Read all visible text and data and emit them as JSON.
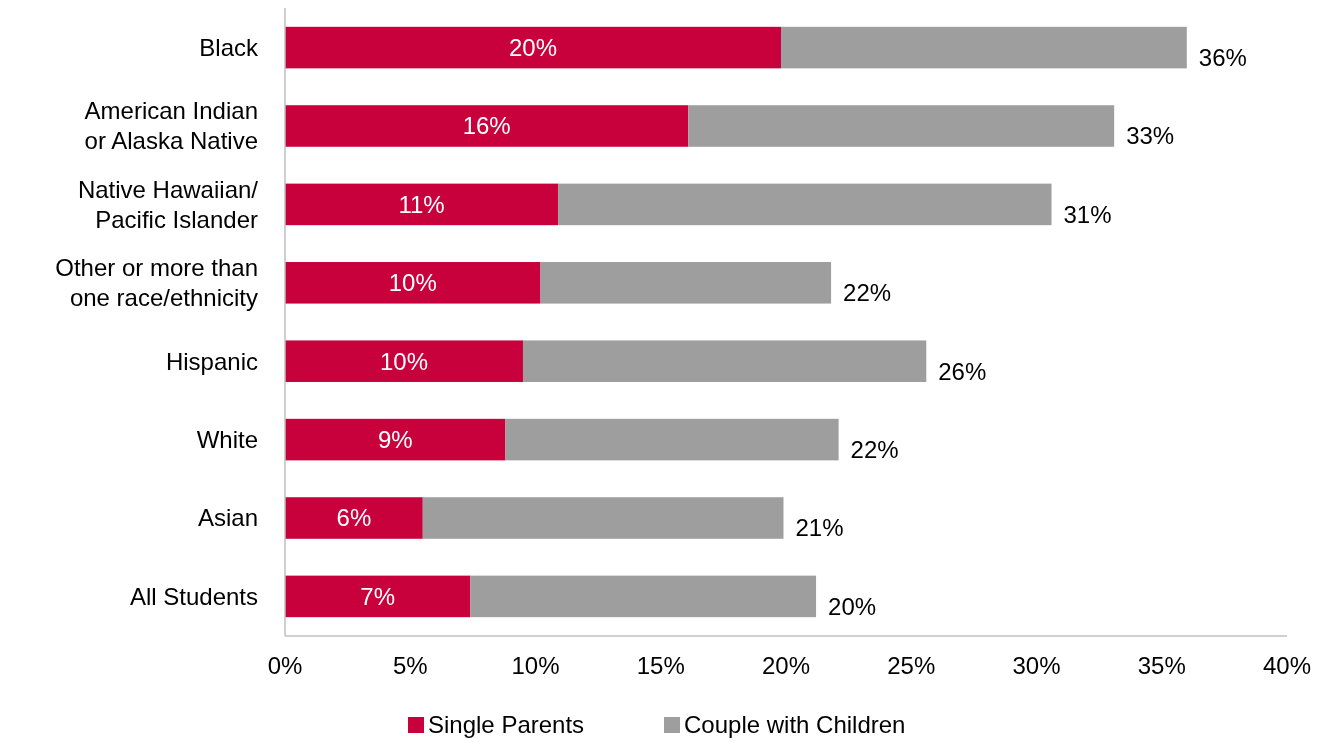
{
  "chart_data": {
    "type": "bar",
    "orientation": "horizontal",
    "stacked": true,
    "categories": [
      "Black",
      "American Indian\nor Alaska Native",
      "Native Hawaiian/\nPacific Islander",
      "Other or more than\none race/ethnicity",
      "Hispanic",
      "White",
      "Asian",
      "All Students"
    ],
    "series": [
      {
        "name": "Single Parents",
        "color": "#c8003c",
        "values": [
          19.8,
          16.1,
          10.9,
          10.2,
          9.5,
          8.8,
          5.5,
          7.4
        ],
        "value_labels": [
          "20%",
          "16%",
          "11%",
          "10%",
          "10%",
          "9%",
          "6%",
          "7%"
        ]
      },
      {
        "name": "Couple with Children",
        "color": "#9e9e9e",
        "values": [
          16.2,
          17.0,
          19.7,
          11.6,
          16.1,
          13.3,
          14.4,
          13.8
        ]
      }
    ],
    "totals": [
      "36%",
      "33%",
      "31%",
      "22%",
      "26%",
      "22%",
      "21%",
      "20%"
    ],
    "xlim": [
      0,
      40
    ],
    "xticks": [
      {
        "value": 0,
        "label": "0%"
      },
      {
        "value": 5,
        "label": "5%"
      },
      {
        "value": 10,
        "label": "10%"
      },
      {
        "value": 15,
        "label": "15%"
      },
      {
        "value": 20,
        "label": "20%"
      },
      {
        "value": 25,
        "label": "25%"
      },
      {
        "value": 30,
        "label": "30%"
      },
      {
        "value": 35,
        "label": "35%"
      },
      {
        "value": 40,
        "label": "40%"
      }
    ],
    "grid": false,
    "legend": "bottom"
  }
}
